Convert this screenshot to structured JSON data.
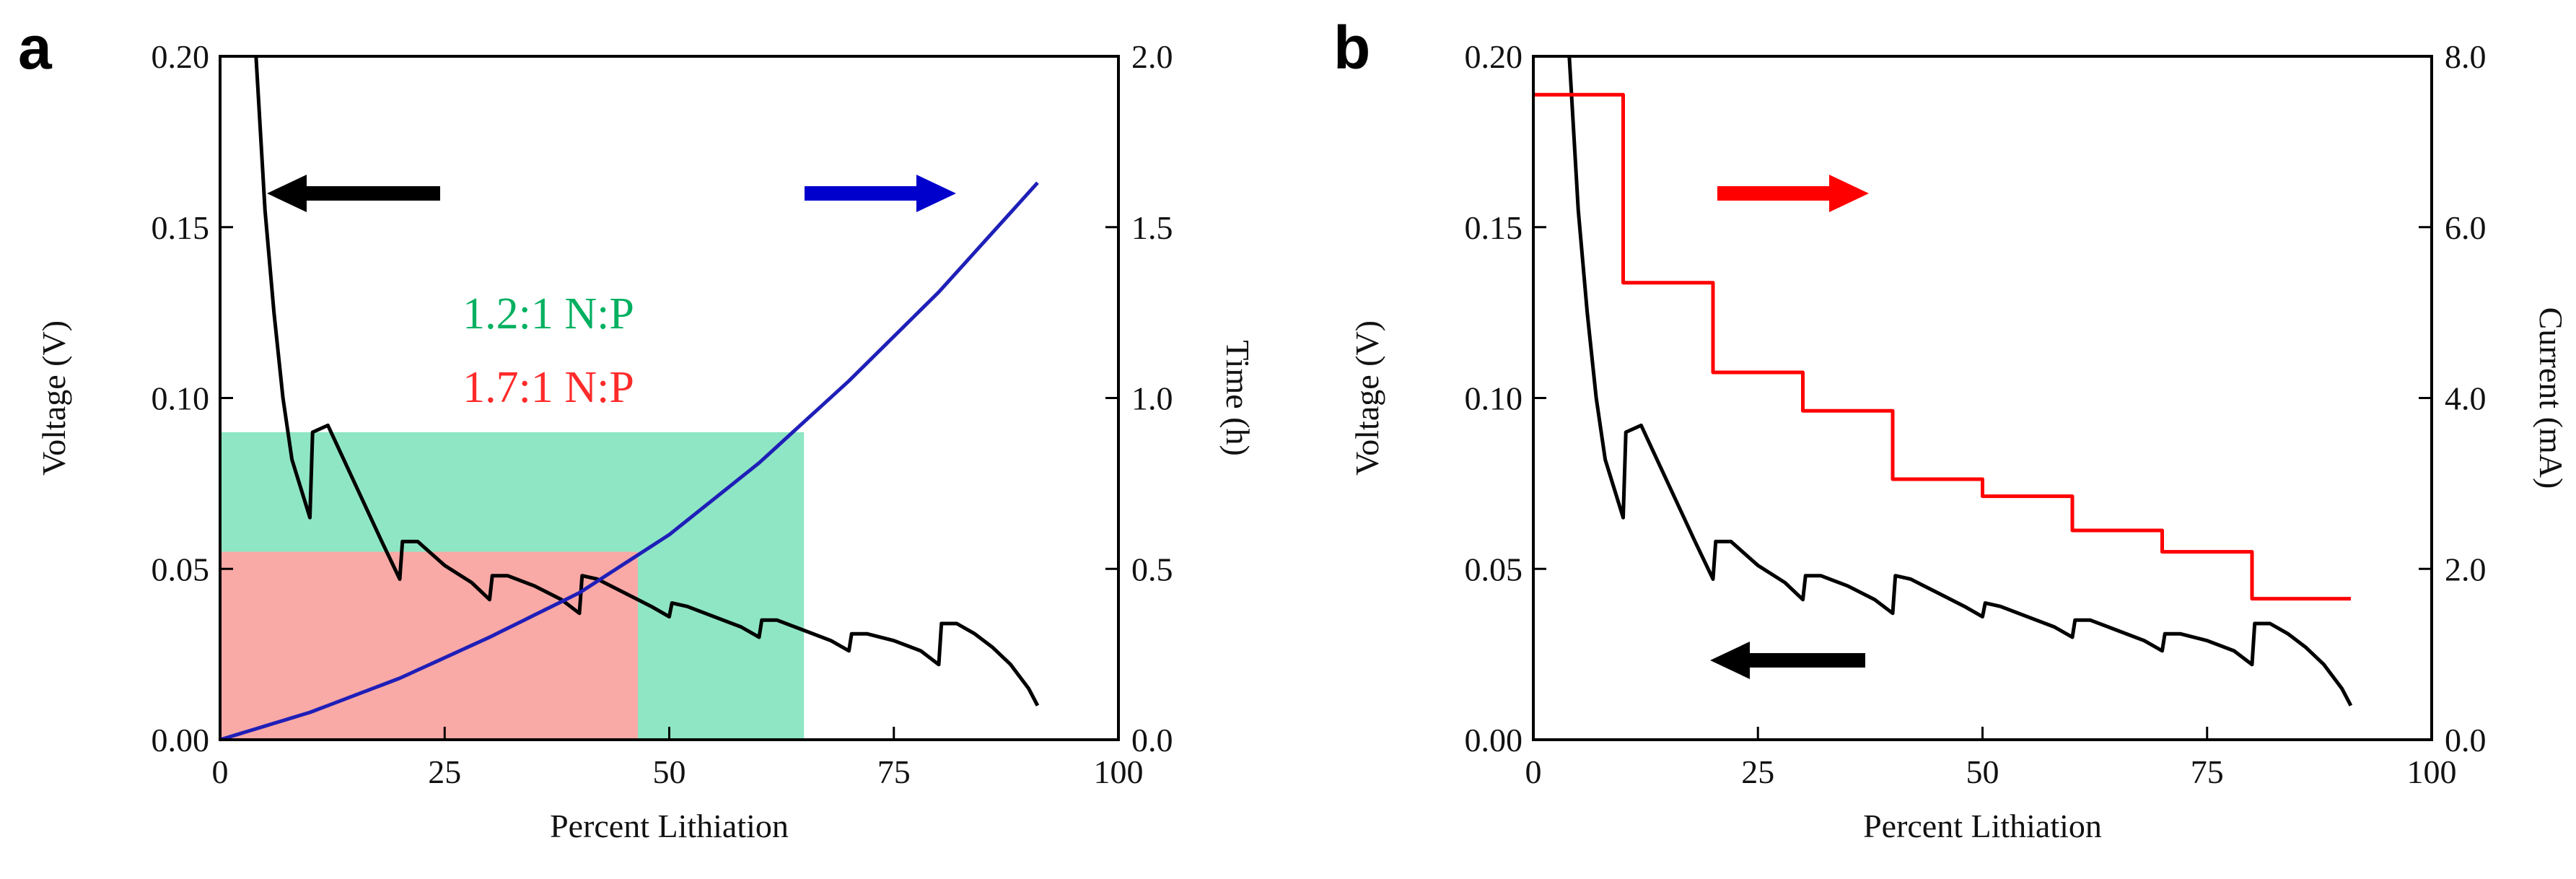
{
  "chart_data": [
    {
      "panel_label": "a",
      "type": "line",
      "xlabel": "Percent Lithiation",
      "ylabel_left": "Voltage (V)",
      "ylabel_right": "Time (h)",
      "xlim": [
        0,
        100
      ],
      "ylim_left": [
        0,
        0.2
      ],
      "ylim_right": [
        0,
        2.0
      ],
      "x_ticks": [
        "0",
        "25",
        "50",
        "75",
        "100"
      ],
      "y_left_ticks": [
        "0.00",
        "0.05",
        "0.10",
        "0.15",
        "0.20"
      ],
      "y_right_ticks": [
        "0.0",
        "0.5",
        "1.0",
        "1.5",
        "2.0"
      ],
      "annotations": [
        {
          "text": "1.2:1 N:P",
          "color": "#00b060"
        },
        {
          "text": "1.7:1 N:P",
          "color": "#ff2a2a"
        }
      ],
      "arrows": [
        {
          "direction": "left",
          "axis": "left",
          "color": "#000000"
        },
        {
          "direction": "right",
          "axis": "right",
          "color": "#0000cc"
        }
      ],
      "shaded_regions": [
        {
          "name": "1.2:1 N:P",
          "x_range": [
            0,
            65
          ],
          "y_top": 0.09,
          "color": "#8fe6c4"
        },
        {
          "name": "1.7:1 N:P",
          "x_range": [
            0,
            46.5
          ],
          "y_top": 0.055,
          "color": "#f9a9a6"
        }
      ],
      "series": [
        {
          "name": "Voltage",
          "axis": "left",
          "color": "#000000",
          "x": [
            4,
            5,
            6,
            7,
            8,
            10,
            10.3,
            12,
            15,
            18,
            20,
            20.3,
            22,
            25,
            28,
            30,
            30.3,
            32,
            35,
            38,
            40,
            40.3,
            42,
            45,
            48,
            50,
            50.3,
            52,
            55,
            58,
            60,
            60.3,
            62,
            65,
            68,
            70,
            70.3,
            72,
            75,
            78,
            80,
            80.3,
            82,
            84,
            86,
            88,
            90,
            91
          ],
          "y": [
            0.2,
            0.155,
            0.125,
            0.1,
            0.082,
            0.065,
            0.09,
            0.092,
            0.075,
            0.058,
            0.047,
            0.058,
            0.058,
            0.051,
            0.046,
            0.041,
            0.048,
            0.048,
            0.045,
            0.041,
            0.037,
            0.048,
            0.047,
            0.043,
            0.039,
            0.036,
            0.04,
            0.039,
            0.036,
            0.033,
            0.03,
            0.035,
            0.035,
            0.032,
            0.029,
            0.026,
            0.031,
            0.031,
            0.029,
            0.026,
            0.022,
            0.034,
            0.034,
            0.031,
            0.027,
            0.022,
            0.015,
            0.01
          ]
        },
        {
          "name": "Time",
          "axis": "right",
          "color": "#1f1fb8",
          "x": [
            0,
            10,
            20,
            30,
            40,
            50,
            60,
            70,
            80,
            91
          ],
          "y": [
            0.0,
            0.08,
            0.18,
            0.3,
            0.43,
            0.6,
            0.81,
            1.05,
            1.31,
            1.63
          ]
        }
      ]
    },
    {
      "panel_label": "b",
      "type": "line",
      "xlabel": "Percent Lithiation",
      "ylabel_left": "Voltage (V)",
      "ylabel_right": "Current (mA)",
      "xlim": [
        0,
        100
      ],
      "ylim_left": [
        0,
        0.2
      ],
      "ylim_right": [
        0,
        8.0
      ],
      "x_ticks": [
        "0",
        "25",
        "50",
        "75",
        "100"
      ],
      "y_left_ticks": [
        "0.00",
        "0.05",
        "0.10",
        "0.15",
        "0.20"
      ],
      "y_right_ticks": [
        "0.0",
        "2.0",
        "4.0",
        "6.0",
        "8.0"
      ],
      "arrows": [
        {
          "direction": "right",
          "axis": "right",
          "color": "#ff0000"
        },
        {
          "direction": "left",
          "axis": "left",
          "color": "#000000"
        }
      ],
      "series": [
        {
          "name": "Voltage",
          "axis": "left",
          "color": "#000000",
          "x": [
            4,
            5,
            6,
            7,
            8,
            10,
            10.3,
            12,
            15,
            18,
            20,
            20.3,
            22,
            25,
            28,
            30,
            30.3,
            32,
            35,
            38,
            40,
            40.3,
            42,
            45,
            48,
            50,
            50.3,
            52,
            55,
            58,
            60,
            60.3,
            62,
            65,
            68,
            70,
            70.3,
            72,
            75,
            78,
            80,
            80.3,
            82,
            84,
            86,
            88,
            90,
            91
          ],
          "y": [
            0.2,
            0.155,
            0.125,
            0.1,
            0.082,
            0.065,
            0.09,
            0.092,
            0.075,
            0.058,
            0.047,
            0.058,
            0.058,
            0.051,
            0.046,
            0.041,
            0.048,
            0.048,
            0.045,
            0.041,
            0.037,
            0.048,
            0.047,
            0.043,
            0.039,
            0.036,
            0.04,
            0.039,
            0.036,
            0.033,
            0.03,
            0.035,
            0.035,
            0.032,
            0.029,
            0.026,
            0.031,
            0.031,
            0.029,
            0.026,
            0.022,
            0.034,
            0.034,
            0.031,
            0.027,
            0.022,
            0.015,
            0.01
          ]
        },
        {
          "name": "Current",
          "axis": "right",
          "color": "#ff0000",
          "step": true,
          "x": [
            0,
            10,
            20,
            30,
            40,
            50,
            60,
            70,
            80,
            91
          ],
          "y": [
            7.55,
            5.35,
            4.3,
            3.85,
            3.05,
            2.85,
            2.45,
            2.2,
            1.65,
            1.65
          ]
        }
      ]
    }
  ]
}
